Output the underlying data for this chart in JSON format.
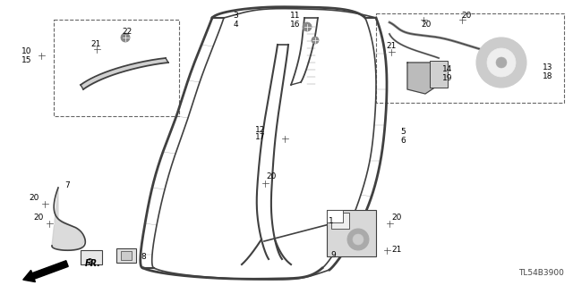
{
  "bg_color": "#ffffff",
  "line_color": "#404040",
  "text_color": "#000000",
  "fig_width": 6.4,
  "fig_height": 3.19,
  "dpi": 100,
  "watermark": "TL54B3900",
  "arrow_text": "FR."
}
